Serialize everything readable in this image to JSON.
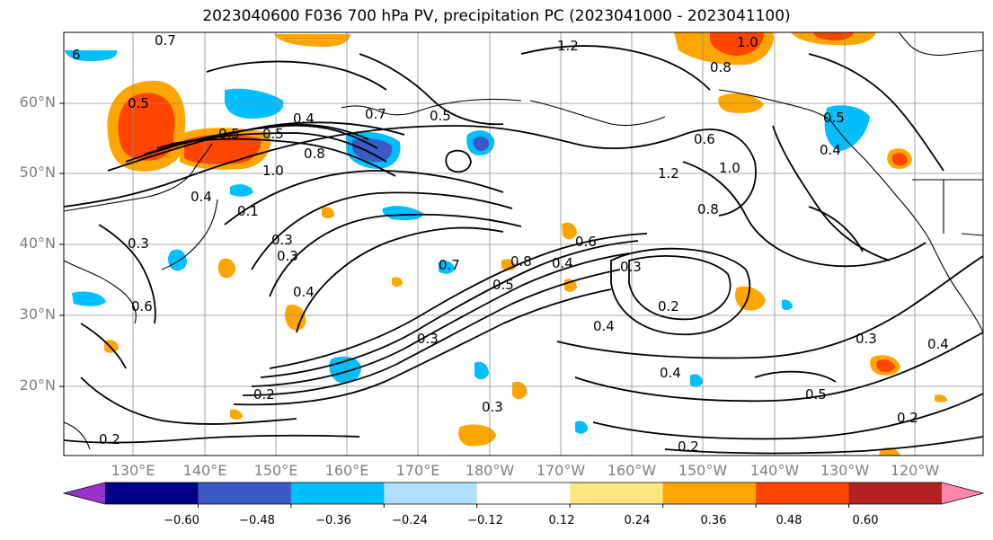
{
  "title": "2023040600 F036 700 hPa PV, precipitation PC (2023041000 - 2023041100)",
  "lat_labels": [
    "60°N",
    "50°N",
    "40°N",
    "30°N",
    "20°N"
  ],
  "lon_labels": [
    "130°E",
    "140°E",
    "150°E",
    "160°E",
    "170°E",
    "180°W",
    "170°W",
    "160°W",
    "150°W",
    "140°W",
    "130°W",
    "120°W"
  ],
  "contour_labels": [
    "6",
    "0.7",
    "0.5",
    "0.5",
    "0.4",
    "0.5",
    "0.8",
    "1.0",
    "0.1",
    "0.7",
    "0.5",
    "1.2",
    "1.0",
    "0.8",
    "0.6",
    "1.0",
    "1.2",
    "0.8",
    "0.5",
    "0.4",
    "0.3",
    "0.4",
    "0.6",
    "0.3",
    "0.3",
    "0.4",
    "0.7",
    "0.5",
    "0.8",
    "0.6",
    "0.4",
    "0.3",
    "0.2",
    "0.4",
    "0.3",
    "0.4",
    "0.2",
    "0.3",
    "0.4",
    "0.5",
    "0.2",
    "0.2",
    "0.2",
    "0.3"
  ],
  "colorbar": {
    "ticks": [
      "−0.60",
      "−0.48",
      "−0.36",
      "−0.24",
      "−0.12",
      "0.12",
      "0.24",
      "0.36",
      "0.48",
      "0.60"
    ],
    "colors": [
      "#9932cc",
      "#00008b",
      "#3a5bc7",
      "#00bfff",
      "#b0e0ff",
      "#ffffff",
      "#ffe680",
      "#ffa500",
      "#ff4500",
      "#b22222",
      "#ff88aa"
    ]
  }
}
